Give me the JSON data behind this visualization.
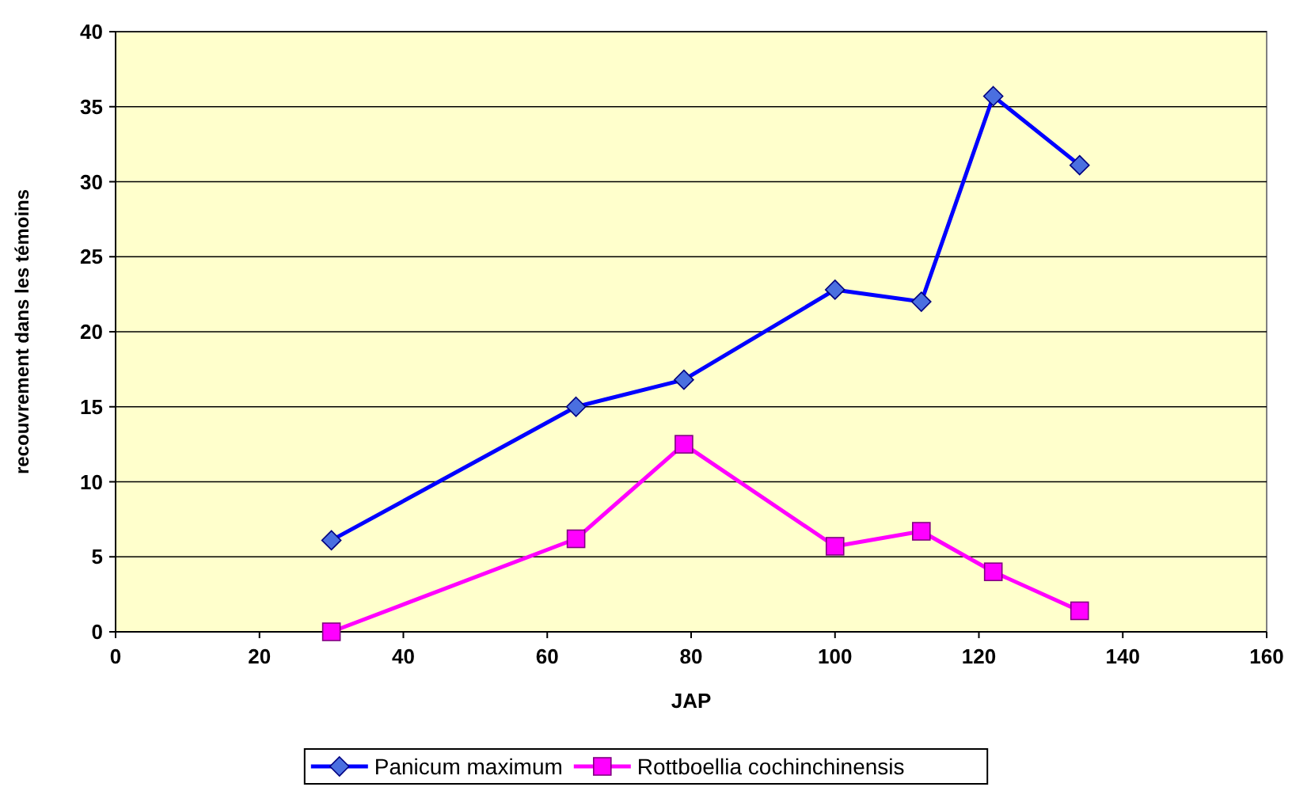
{
  "chart_data": {
    "type": "line",
    "xlabel": "JAP",
    "ylabel": "recouvrement dans les témoins",
    "x": [
      30,
      64,
      79,
      100,
      112,
      122,
      134
    ],
    "series": [
      {
        "name": "Panicum maximum",
        "color": "#0000ff",
        "marker": "diamond",
        "values": [
          6.1,
          15,
          16.8,
          22.8,
          22,
          35.7,
          31.1
        ]
      },
      {
        "name": "Rottboellia cochinchinensis",
        "color": "#ff00ff",
        "marker": "square",
        "values": [
          0,
          6.2,
          12.5,
          5.7,
          6.7,
          4,
          1.4
        ]
      }
    ],
    "xlim": [
      0,
      160
    ],
    "xticks": [
      0,
      20,
      40,
      60,
      80,
      100,
      120,
      140,
      160
    ],
    "ylim": [
      0,
      40
    ],
    "yticks": [
      0,
      5,
      10,
      15,
      20,
      25,
      30,
      35,
      40
    ],
    "grid": "y",
    "legend": "bottom"
  }
}
